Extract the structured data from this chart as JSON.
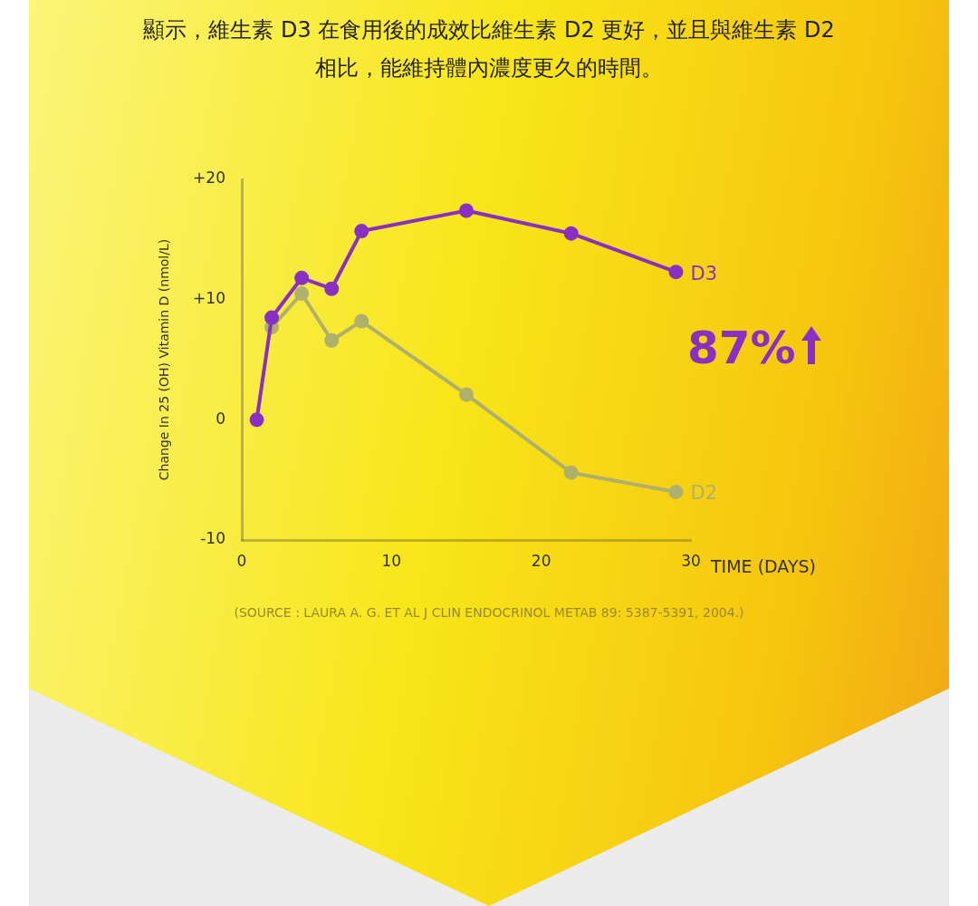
{
  "chart_data": {
    "type": "line",
    "title": "顯示，維生素 D3 在食用後的成效比維生素 D2 更好，並且與維生素 D2 相比，能維持體內濃度更久的時間。",
    "xlabel": "TIME (DAYS)",
    "ylabel": "Change In 25 (OH) Vitamin D (nmol/L)",
    "series": [
      {
        "name": "D3",
        "color": "#8a2fc4",
        "x": [
          1,
          2,
          4,
          6,
          8,
          15,
          22,
          29
        ],
        "values": [
          0,
          8.5,
          11.8,
          10.9,
          15.7,
          17.4,
          15.5,
          12.3
        ]
      },
      {
        "name": "D2",
        "color": "#b0b06e",
        "x": [
          2,
          4,
          6,
          8,
          15,
          22,
          29
        ],
        "values": [
          7.7,
          10.5,
          6.6,
          8.2,
          2.1,
          -4.4,
          -6.0
        ]
      }
    ],
    "xlim": [
      0,
      30
    ],
    "xticks": [
      0,
      10,
      20,
      30
    ],
    "ylim": [
      -10,
      20
    ],
    "yticks": [
      -10,
      0,
      {
        "value": 10,
        "label": "+10"
      },
      {
        "value": 20,
        "label": "+20"
      }
    ],
    "grid": false,
    "marker": "circle",
    "line_style": "solid",
    "annotations": [
      "87%",
      "(SOURCE : LAURA A. G. ET AL J CLIN ENDOCRINOL METAB 89: 5387-5391, 2004.)"
    ]
  }
}
